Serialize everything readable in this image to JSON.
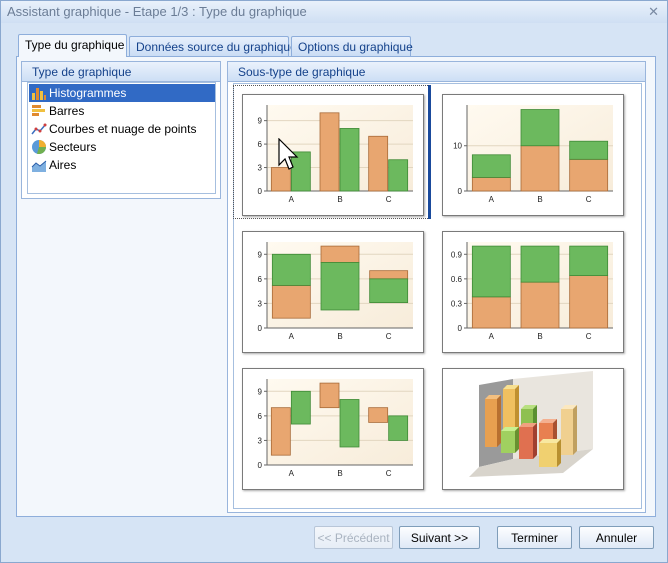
{
  "window": {
    "title": "Assistant graphique - Etape 1/3 : Type du graphique",
    "close_glyph": "✕"
  },
  "tabs": [
    {
      "label": "Type du graphique",
      "active": true
    },
    {
      "label": "Données source du graphique",
      "active": false
    },
    {
      "label": "Options du graphique",
      "active": false
    }
  ],
  "chart_types": {
    "header": "Type de graphique",
    "items": [
      {
        "label": "Histogrammes",
        "icon": "column-chart-icon",
        "selected": true
      },
      {
        "label": "Barres",
        "icon": "bar-chart-icon",
        "selected": false
      },
      {
        "label": "Courbes et nuage de points",
        "icon": "line-scatter-icon",
        "selected": false
      },
      {
        "label": "Secteurs",
        "icon": "pie-chart-icon",
        "selected": false
      },
      {
        "label": "Aires",
        "icon": "area-chart-icon",
        "selected": false
      }
    ]
  },
  "subtypes": {
    "header": "Sous-type de graphique",
    "selected_index": 0
  },
  "chart_data": [
    {
      "type": "bar",
      "variant": "clustered",
      "categories": [
        "A",
        "B",
        "C"
      ],
      "series": [
        {
          "values": [
            3,
            10,
            7
          ]
        },
        {
          "values": [
            5,
            8,
            4
          ]
        }
      ],
      "yticks": [
        "0",
        "3",
        "6",
        "9"
      ],
      "ylim": [
        0,
        11
      ],
      "grid": true
    },
    {
      "type": "bar",
      "variant": "stacked",
      "categories": [
        "A",
        "B",
        "C"
      ],
      "series": [
        {
          "values": [
            3,
            10,
            7
          ]
        },
        {
          "values": [
            5,
            8,
            4
          ]
        }
      ],
      "yticks": [
        "0",
        "10"
      ],
      "ylim": [
        0,
        19
      ],
      "grid": true
    },
    {
      "type": "bar",
      "variant": "floating-stacked",
      "categories": [
        "A",
        "B",
        "C"
      ],
      "series": [
        {
          "ranges": [
            [
              1.2,
              5.2
            ],
            [
              8,
              10
            ],
            [
              6,
              7
            ]
          ]
        },
        {
          "ranges": [
            [
              5.2,
              9
            ],
            [
              2.2,
              8
            ],
            [
              3.1,
              6
            ]
          ]
        }
      ],
      "yticks": [
        "0",
        "3",
        "6",
        "9"
      ],
      "ylim": [
        0,
        10.5
      ],
      "grid": true
    },
    {
      "type": "bar",
      "variant": "stacked-100",
      "categories": [
        "A",
        "B",
        "C"
      ],
      "series": [
        {
          "values": [
            0.38,
            0.56,
            0.64
          ]
        },
        {
          "values": [
            0.62,
            0.44,
            0.36
          ]
        }
      ],
      "yticks": [
        "0",
        "0.3",
        "0.6",
        "0.9"
      ],
      "ylim": [
        0,
        1.05
      ],
      "grid": true
    },
    {
      "type": "bar",
      "variant": "floating-clustered",
      "categories": [
        "A",
        "B",
        "C"
      ],
      "series": [
        {
          "ranges": [
            [
              1.2,
              7
            ],
            [
              7,
              10
            ],
            [
              5.2,
              7
            ]
          ]
        },
        {
          "ranges": [
            [
              5,
              9
            ],
            [
              2.2,
              8
            ],
            [
              3,
              6
            ]
          ]
        }
      ],
      "yticks": [
        "0",
        "3",
        "6",
        "9"
      ],
      "ylim": [
        0,
        10.5
      ],
      "grid": true
    },
    {
      "type": "bar",
      "variant": "3d-column",
      "categories": [],
      "series": []
    }
  ],
  "colors": {
    "series1": "#e8a670",
    "series2": "#6cb95e",
    "plot_bg": "#f7ecda",
    "selection": "#1a4a9c"
  },
  "buttons": {
    "previous": {
      "label": "<< Précédent",
      "enabled": false
    },
    "next": {
      "label": "Suivant >>",
      "enabled": true
    },
    "finish": {
      "label": "Terminer",
      "enabled": true
    },
    "cancel": {
      "label": "Annuler",
      "enabled": true
    }
  }
}
